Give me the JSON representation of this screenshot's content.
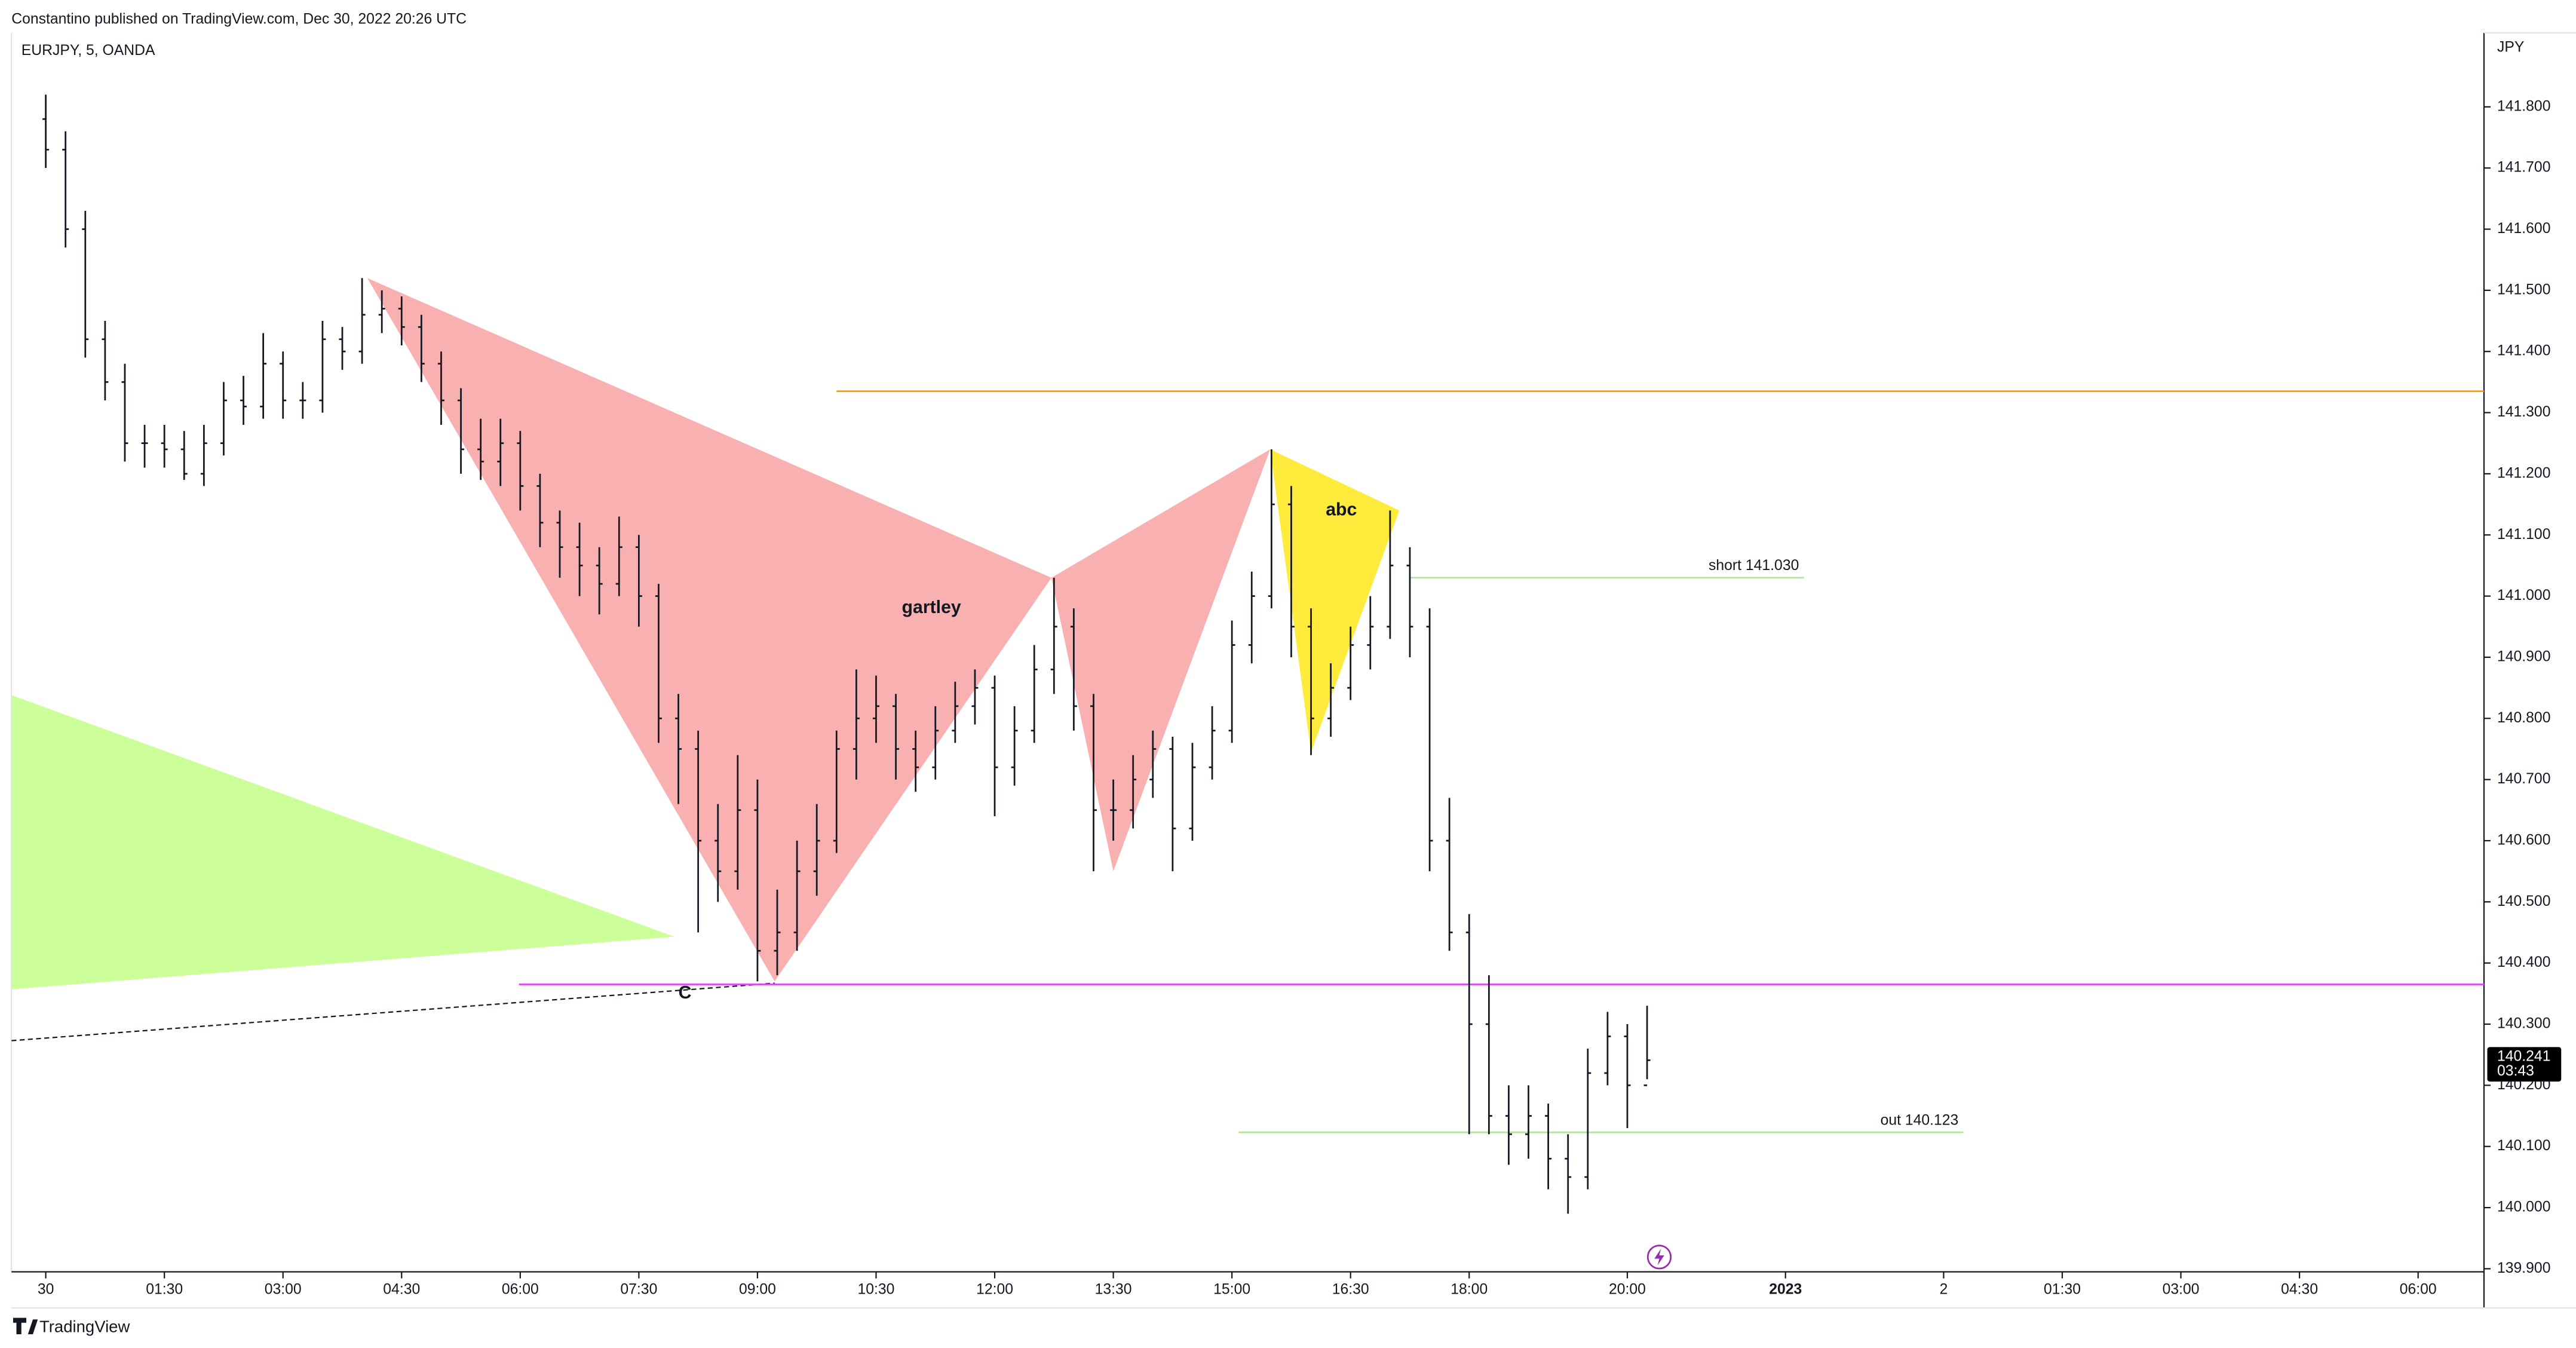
{
  "chart_data": {
    "type": "ohlc",
    "subtitle": "Constantino published on TradingView.com, Dec 30, 2022 20:26 UTC",
    "title": "EURJPY, 5, OANDA",
    "y_label": "JPY",
    "brand": "TradingView",
    "countdown": "03:43",
    "last_price": 140.241,
    "xlim": [
      -26,
      1850
    ],
    "ylim": [
      139.895,
      141.921
    ],
    "xticks": [
      {
        "value": 0,
        "label": "30"
      },
      {
        "value": 90,
        "label": "01:30"
      },
      {
        "value": 180,
        "label": "03:00"
      },
      {
        "value": 270,
        "label": "04:30"
      },
      {
        "value": 360,
        "label": "06:00"
      },
      {
        "value": 450,
        "label": "07:30"
      },
      {
        "value": 540,
        "label": "09:00"
      },
      {
        "value": 630,
        "label": "10:30"
      },
      {
        "value": 720,
        "label": "12:00"
      },
      {
        "value": 810,
        "label": "13:30"
      },
      {
        "value": 900,
        "label": "15:00"
      },
      {
        "value": 990,
        "label": "16:30"
      },
      {
        "value": 1080,
        "label": "18:00"
      },
      {
        "value": 1200,
        "label": "20:00"
      },
      {
        "value": 1320,
        "label": "2023"
      },
      {
        "value": 1440,
        "label": "2"
      },
      {
        "value": 1530,
        "label": "01:30"
      },
      {
        "value": 1620,
        "label": "03:00"
      },
      {
        "value": 1710,
        "label": "04:30"
      },
      {
        "value": 1800,
        "label": "06:00"
      }
    ],
    "yticks": [
      {
        "value": 139.9,
        "label": "139.900"
      },
      {
        "value": 140.0,
        "label": "140.000"
      },
      {
        "value": 140.1,
        "label": "140.100"
      },
      {
        "value": 140.2,
        "label": "140.200"
      },
      {
        "value": 140.3,
        "label": "140.300"
      },
      {
        "value": 140.4,
        "label": "140.400"
      },
      {
        "value": 140.5,
        "label": "140.500"
      },
      {
        "value": 140.6,
        "label": "140.600"
      },
      {
        "value": 140.7,
        "label": "140.700"
      },
      {
        "value": 140.8,
        "label": "140.800"
      },
      {
        "value": 140.9,
        "label": "140.900"
      },
      {
        "value": 141.0,
        "label": "141.000"
      },
      {
        "value": 141.1,
        "label": "141.100"
      },
      {
        "value": 141.2,
        "label": "141.200"
      },
      {
        "value": 141.3,
        "label": "141.300"
      },
      {
        "value": 141.4,
        "label": "141.400"
      },
      {
        "value": 141.5,
        "label": "141.500"
      },
      {
        "value": 141.6,
        "label": "141.600"
      },
      {
        "value": 141.7,
        "label": "141.700"
      },
      {
        "value": 141.8,
        "label": "141.800"
      }
    ],
    "color": "#131722",
    "x": [
      0,
      15,
      30,
      45,
      60,
      75,
      90,
      105,
      120,
      135,
      150,
      165,
      180,
      195,
      210,
      225,
      240,
      255,
      270,
      285,
      300,
      315,
      330,
      345,
      360,
      375,
      390,
      405,
      420,
      435,
      450,
      465,
      480,
      495,
      510,
      525,
      540,
      555,
      570,
      585,
      600,
      615,
      630,
      645,
      660,
      675,
      690,
      705,
      720,
      735,
      750,
      765,
      780,
      795,
      810,
      825,
      840,
      855,
      870,
      885,
      900,
      915,
      930,
      945,
      960,
      975,
      990,
      1005,
      1020,
      1035,
      1050,
      1065,
      1080,
      1095,
      1110,
      1125,
      1140,
      1155,
      1170,
      1185,
      1200,
      1215
    ],
    "open": [
      141.78,
      141.73,
      141.6,
      141.42,
      141.35,
      141.25,
      141.25,
      141.24,
      141.2,
      141.25,
      141.32,
      141.31,
      141.38,
      141.32,
      141.32,
      141.42,
      141.4,
      141.46,
      141.47,
      141.44,
      141.38,
      141.32,
      141.24,
      141.22,
      141.25,
      141.18,
      141.12,
      141.08,
      141.05,
      141.02,
      141.08,
      141.0,
      140.8,
      140.75,
      140.6,
      140.55,
      140.65,
      140.42,
      140.45,
      140.55,
      140.6,
      140.75,
      140.8,
      140.82,
      140.75,
      140.72,
      140.78,
      140.82,
      140.85,
      140.72,
      140.78,
      140.88,
      140.95,
      140.82,
      140.65,
      140.65,
      140.7,
      140.75,
      140.62,
      140.72,
      140.78,
      140.92,
      141.0,
      141.15,
      140.95,
      140.8,
      140.85,
      140.92,
      140.95,
      141.05,
      140.95,
      140.6,
      140.45,
      140.3,
      140.15,
      140.12,
      140.15,
      140.08,
      140.05,
      140.22,
      140.28,
      140.2
    ],
    "high": [
      141.82,
      141.76,
      141.63,
      141.45,
      141.38,
      141.28,
      141.28,
      141.27,
      141.28,
      141.35,
      141.36,
      141.43,
      141.4,
      141.35,
      141.45,
      141.44,
      141.52,
      141.5,
      141.49,
      141.46,
      141.4,
      141.34,
      141.29,
      141.29,
      141.27,
      141.2,
      141.14,
      141.12,
      141.08,
      141.13,
      141.1,
      141.02,
      140.84,
      140.78,
      140.66,
      140.74,
      140.7,
      140.52,
      140.6,
      140.66,
      140.78,
      140.88,
      140.87,
      140.84,
      140.78,
      140.82,
      140.86,
      140.88,
      140.87,
      140.82,
      140.92,
      141.03,
      140.98,
      140.84,
      140.7,
      140.74,
      140.78,
      140.77,
      140.76,
      140.82,
      140.96,
      141.04,
      141.24,
      141.18,
      140.98,
      140.89,
      140.95,
      141.0,
      141.14,
      141.08,
      140.98,
      140.67,
      140.48,
      140.38,
      140.2,
      140.2,
      140.17,
      140.12,
      140.26,
      140.32,
      140.3,
      140.33
    ],
    "low": [
      141.7,
      141.57,
      141.39,
      141.32,
      141.22,
      141.21,
      141.21,
      141.19,
      141.18,
      141.23,
      141.28,
      141.29,
      141.29,
      141.29,
      141.3,
      141.37,
      141.38,
      141.43,
      141.41,
      141.35,
      141.28,
      141.2,
      141.19,
      141.18,
      141.14,
      141.08,
      141.03,
      141.0,
      140.97,
      141.0,
      140.95,
      140.76,
      140.66,
      140.45,
      140.5,
      140.52,
      140.37,
      140.38,
      140.42,
      140.51,
      140.58,
      140.7,
      140.76,
      140.7,
      140.68,
      140.7,
      140.76,
      140.79,
      140.64,
      140.69,
      140.76,
      140.84,
      140.78,
      140.55,
      140.6,
      140.62,
      140.67,
      140.55,
      140.6,
      140.7,
      140.76,
      140.89,
      140.98,
      140.9,
      140.74,
      140.77,
      140.83,
      140.88,
      140.93,
      140.9,
      140.55,
      140.42,
      140.12,
      140.12,
      140.07,
      140.08,
      140.03,
      139.99,
      140.03,
      140.2,
      140.13,
      140.21
    ],
    "close": [
      141.73,
      141.6,
      141.42,
      141.35,
      141.25,
      141.25,
      141.24,
      141.2,
      141.25,
      141.32,
      141.31,
      141.38,
      141.32,
      141.32,
      141.42,
      141.4,
      141.46,
      141.47,
      141.44,
      141.38,
      141.32,
      141.24,
      141.22,
      141.25,
      141.18,
      141.12,
      141.08,
      141.05,
      141.02,
      141.08,
      141.0,
      140.8,
      140.75,
      140.6,
      140.55,
      140.65,
      140.42,
      140.45,
      140.55,
      140.6,
      140.75,
      140.8,
      140.82,
      140.75,
      140.72,
      140.78,
      140.82,
      140.85,
      140.72,
      140.78,
      140.88,
      140.95,
      140.82,
      140.65,
      140.65,
      140.7,
      140.75,
      140.62,
      140.72,
      140.78,
      140.92,
      141.0,
      141.15,
      140.95,
      140.8,
      140.85,
      140.92,
      140.95,
      141.05,
      140.95,
      140.6,
      140.45,
      140.3,
      140.15,
      140.12,
      140.15,
      140.08,
      140.05,
      140.22,
      140.28,
      140.2,
      140.241
    ],
    "levels": [
      {
        "value": 141.335,
        "x_from": 600,
        "color": "#ff9800"
      },
      {
        "value": 140.365,
        "x_from": 359,
        "color": "#e040fb"
      },
      {
        "value": 141.03,
        "x_from": 1035,
        "x_to": 1334,
        "color": "#b2e59b",
        "label": "short 141.030"
      },
      {
        "value": 140.123,
        "x_from": 905,
        "x_to": 1455,
        "color": "#b2e59b",
        "label": "out 140.123"
      }
    ],
    "shapes": [
      {
        "color": "#ccff99",
        "points": [
          [
            -26,
            140.838
          ],
          [
            -26,
            140.357
          ],
          [
            477,
            140.443
          ]
        ]
      },
      {
        "color": "#f9b0b0",
        "points": [
          [
            244,
            141.52
          ],
          [
            553,
            140.37
          ],
          [
            763,
            141.03
          ]
        ]
      },
      {
        "color": "#f9b0b0",
        "points": [
          [
            763,
            141.03
          ],
          [
            810,
            140.55
          ],
          [
            929,
            141.24
          ]
        ]
      },
      {
        "color": "#ffeb3b",
        "points": [
          [
            929,
            141.24
          ],
          [
            960,
            140.745
          ],
          [
            1027,
            141.14
          ]
        ]
      }
    ],
    "dashed_line": {
      "color": "#131722",
      "points": [
        [
          -26,
          140.273
        ],
        [
          553,
          140.367
        ]
      ]
    },
    "annotations": [
      {
        "text": "gartley",
        "x": 672,
        "y": 140.98
      },
      {
        "text": "abc",
        "x": 983,
        "y": 141.14
      },
      {
        "text": "C",
        "x": 485,
        "y": 140.35
      }
    ]
  }
}
